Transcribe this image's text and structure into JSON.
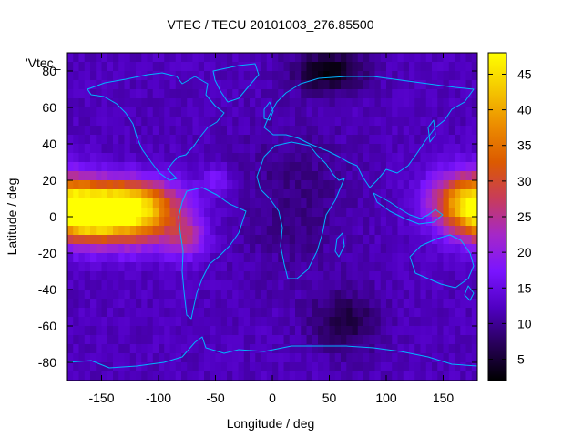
{
  "chart_data": {
    "type": "heatmap",
    "title": "VTEC / TECU 20101003_276.85500",
    "key_label": "'Vtec_",
    "xlabel": "Longitude / deg",
    "ylabel": "Latitude / deg",
    "xlim": [
      -180,
      180
    ],
    "ylim": [
      -90,
      90
    ],
    "xticks": [
      -150,
      -100,
      -50,
      0,
      50,
      100,
      150
    ],
    "yticks": [
      -80,
      -60,
      -40,
      -20,
      0,
      20,
      40,
      60,
      80
    ],
    "colorbar": {
      "range": [
        2,
        48
      ],
      "ticks": [
        5,
        10,
        15,
        20,
        25,
        30,
        35,
        40,
        45
      ]
    },
    "palette": [
      "#000000",
      "#280059",
      "#5000c2",
      "#7a14ff",
      "#a528c8",
      "#c83c5a",
      "#dc5a00",
      "#ec8c00",
      "#f5c800",
      "#ffff00"
    ],
    "coastline_color": "#00b4ff",
    "grid": false,
    "legend": "colorbar-right",
    "features": {
      "background_vtec": 12,
      "equatorial_anomaly": [
        {
          "lon": -140,
          "lat": 8,
          "sx": 35,
          "sy": 9,
          "peak": 27
        },
        {
          "lon": -160,
          "lat": -4,
          "sx": 22,
          "sy": 9,
          "peak": 21
        },
        {
          "lon": -115,
          "lat": -2,
          "sx": 25,
          "sy": 11,
          "peak": 19
        },
        {
          "lon": -75,
          "lat": -12,
          "sx": 12,
          "sy": 8,
          "peak": 10
        },
        {
          "lon": 170,
          "lat": 8,
          "sx": 22,
          "sy": 12,
          "peak": 22
        },
        {
          "lon": -50,
          "lat": 20,
          "sx": 8,
          "sy": 5,
          "peak": 6
        }
      ],
      "depletions": [
        {
          "lon": 50,
          "lat": 80,
          "sx": 22,
          "sy": 8,
          "depth": 9
        },
        {
          "lon": 65,
          "lat": -58,
          "sx": 22,
          "sy": 12,
          "depth": 6
        },
        {
          "lon": 20,
          "lat": 10,
          "sx": 35,
          "sy": 30,
          "depth": 3
        }
      ]
    }
  }
}
